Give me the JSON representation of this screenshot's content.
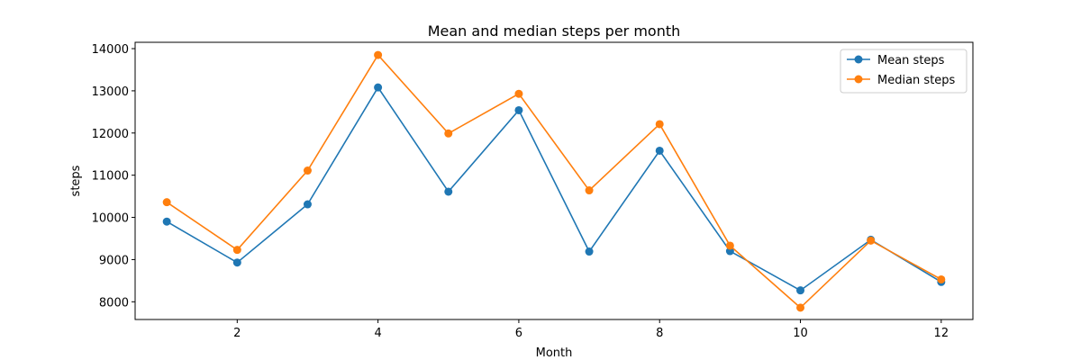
{
  "chart_data": {
    "type": "line",
    "title": "Mean and median steps per month",
    "xlabel": "Month",
    "ylabel": "steps",
    "x": [
      1,
      2,
      3,
      4,
      5,
      6,
      7,
      8,
      9,
      10,
      11,
      12
    ],
    "xlim": [
      0.55,
      12.45
    ],
    "ylim": [
      7580,
      14150
    ],
    "xticks": [
      2,
      4,
      6,
      8,
      10,
      12
    ],
    "yticks": [
      8000,
      9000,
      10000,
      11000,
      12000,
      13000,
      14000
    ],
    "grid": false,
    "legend_position": "top-right",
    "series": [
      {
        "name": "Mean steps",
        "color": "#1f77b4",
        "values": [
          9900,
          8930,
          10310,
          13080,
          10610,
          12540,
          9190,
          11580,
          9200,
          8270,
          9470,
          8470
        ]
      },
      {
        "name": "Median steps",
        "color": "#ff7f0e",
        "values": [
          10360,
          9230,
          11110,
          13850,
          11990,
          12930,
          10640,
          12210,
          9330,
          7860,
          9450,
          8530
        ]
      }
    ]
  }
}
